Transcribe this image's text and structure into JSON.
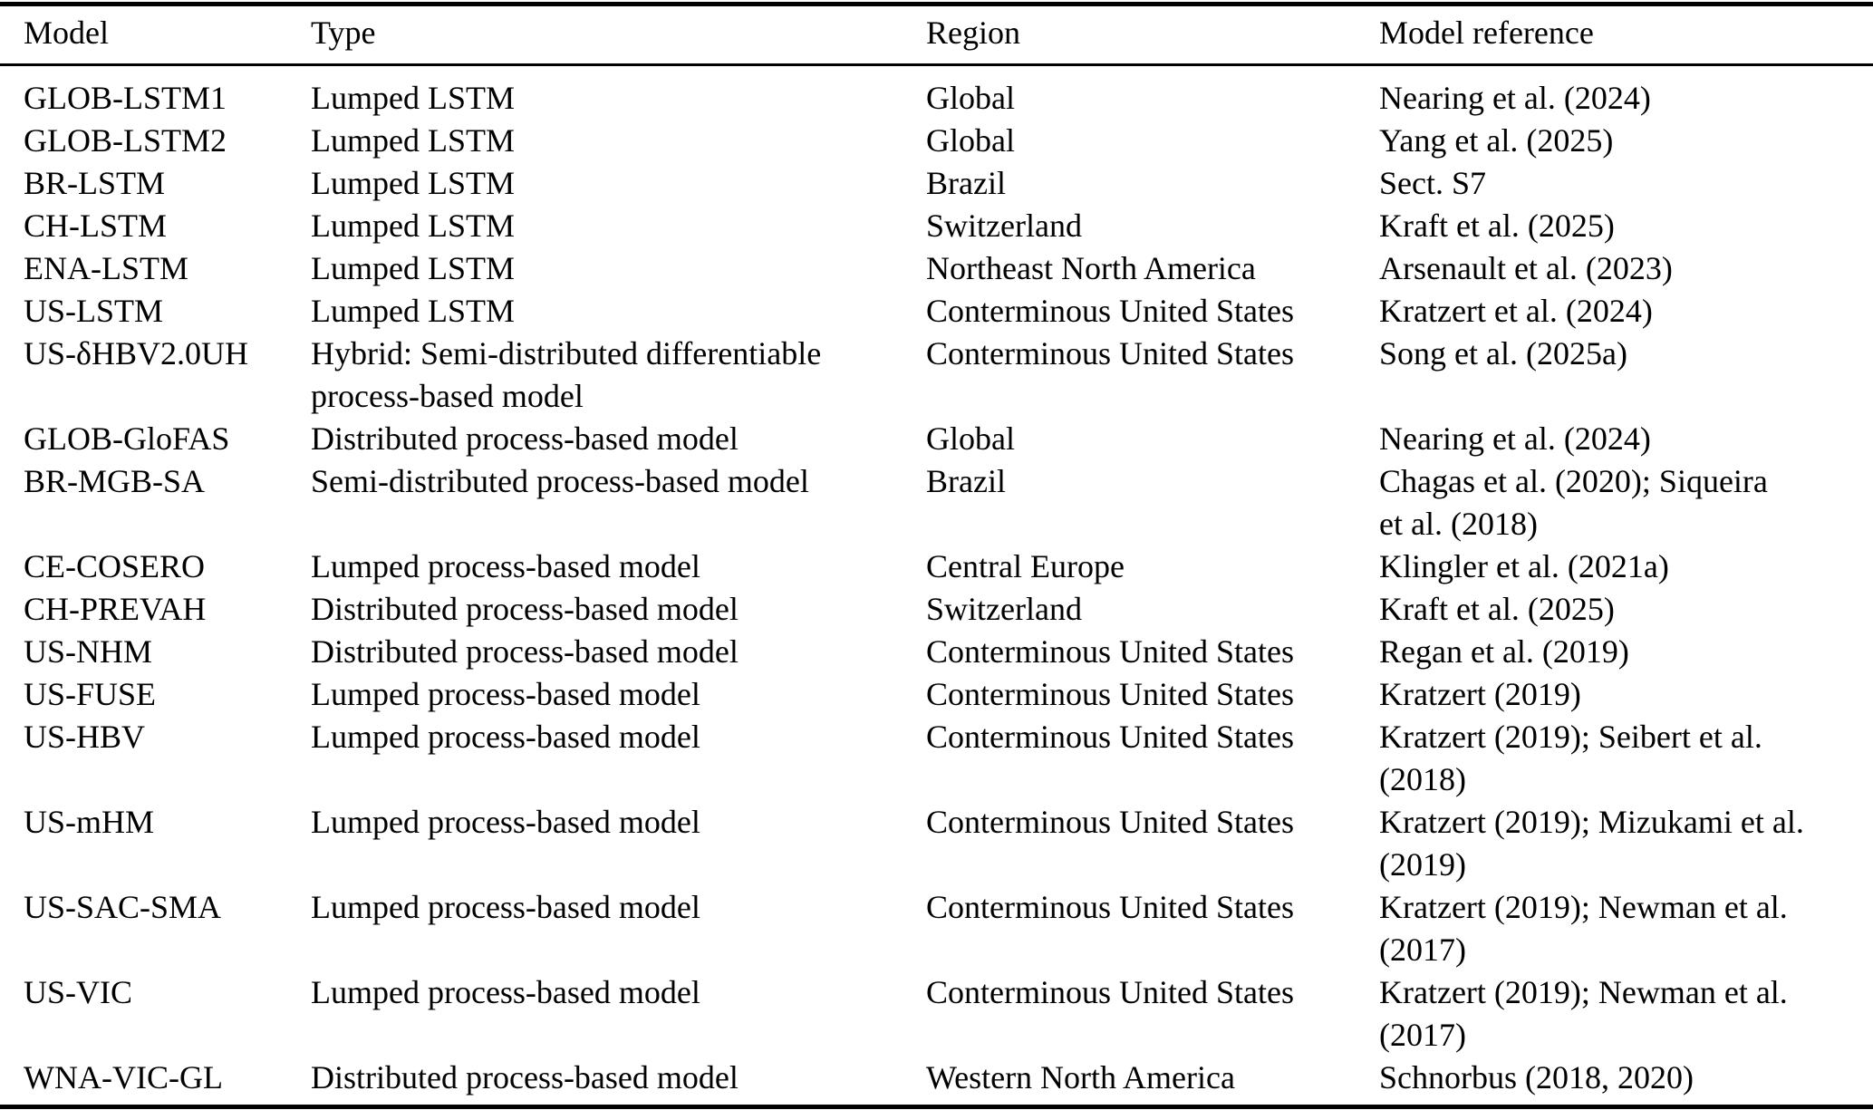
{
  "colors": {
    "text": "#000000",
    "background": "#ffffff",
    "rule": "#000000"
  },
  "table": {
    "columns": {
      "model": "Model",
      "type": "Type",
      "region": "Region",
      "reference": "Model reference"
    },
    "rows": [
      {
        "model": "GLOB-LSTM1",
        "type": "Lumped LSTM",
        "region": "Global",
        "reference": "Nearing et al. (2024)"
      },
      {
        "model": "GLOB-LSTM2",
        "type": "Lumped LSTM",
        "region": "Global",
        "reference": "Yang et al. (2025)"
      },
      {
        "model": "BR-LSTM",
        "type": "Lumped LSTM",
        "region": "Brazil",
        "reference": "Sect. S7"
      },
      {
        "model": "CH-LSTM",
        "type": "Lumped LSTM",
        "region": "Switzerland",
        "reference": "Kraft et al. (2025)"
      },
      {
        "model": "ENA-LSTM",
        "type": "Lumped LSTM",
        "region": "Northeast North America",
        "reference": "Arsenault et al. (2023)"
      },
      {
        "model": "US-LSTM",
        "type": "Lumped LSTM",
        "region": "Conterminous United States",
        "reference": "Kratzert et al. (2024)"
      },
      {
        "model": "US-δHBV2.0UH",
        "type": "Hybrid: Semi-distributed differentiable\nprocess-based model",
        "region": "Conterminous United States",
        "reference": "Song et al. (2025a)"
      },
      {
        "model": "GLOB-GloFAS",
        "type": "Distributed process-based model",
        "region": "Global",
        "reference": "Nearing et al. (2024)"
      },
      {
        "model": "BR-MGB-SA",
        "type": "Semi-distributed process-based model",
        "region": "Brazil",
        "reference": "Chagas et al. (2020); Siqueira\net al. (2018)"
      },
      {
        "model": "CE-COSERO",
        "type": "Lumped process-based model",
        "region": "Central Europe",
        "reference": "Klingler et al. (2021a)"
      },
      {
        "model": "CH-PREVAH",
        "type": "Distributed process-based model",
        "region": "Switzerland",
        "reference": "Kraft et al. (2025)"
      },
      {
        "model": "US-NHM",
        "type": "Distributed process-based model",
        "region": "Conterminous United States",
        "reference": "Regan et al. (2019)"
      },
      {
        "model": "US-FUSE",
        "type": "Lumped process-based model",
        "region": "Conterminous United States",
        "reference": "Kratzert (2019)"
      },
      {
        "model": "US-HBV",
        "type": "Lumped process-based model",
        "region": "Conterminous United States",
        "reference": "Kratzert (2019); Seibert et al.\n(2018)"
      },
      {
        "model": "US-mHM",
        "type": "Lumped process-based model",
        "region": "Conterminous United States",
        "reference": "Kratzert (2019); Mizukami et al.\n(2019)"
      },
      {
        "model": "US-SAC-SMA",
        "type": "Lumped process-based model",
        "region": "Conterminous United States",
        "reference": "Kratzert (2019); Newman et al.\n(2017)"
      },
      {
        "model": "US-VIC",
        "type": "Lumped process-based model",
        "region": "Conterminous United States",
        "reference": "Kratzert (2019); Newman et al.\n(2017)"
      },
      {
        "model": "WNA-VIC-GL",
        "type": "Distributed process-based model",
        "region": "Western North America",
        "reference": "Schnorbus (2018, 2020)"
      }
    ]
  }
}
